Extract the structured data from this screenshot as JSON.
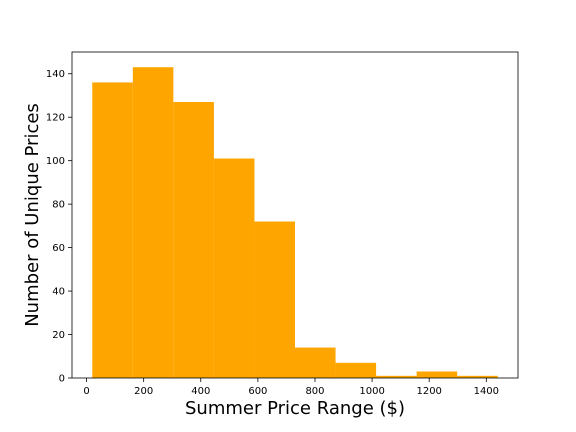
{
  "chart_data": {
    "type": "bar",
    "subtype": "histogram",
    "title": "",
    "xlabel": "Summer Price Range ($)",
    "ylabel": "Number of Unique Prices",
    "bar_color": "#FFA500",
    "bins": [
      {
        "start": 20,
        "end": 162,
        "count": 136
      },
      {
        "start": 162,
        "end": 304,
        "count": 143
      },
      {
        "start": 304,
        "end": 446,
        "count": 127
      },
      {
        "start": 446,
        "end": 588,
        "count": 101
      },
      {
        "start": 588,
        "end": 730,
        "count": 72
      },
      {
        "start": 730,
        "end": 872,
        "count": 14
      },
      {
        "start": 872,
        "end": 1014,
        "count": 7
      },
      {
        "start": 1014,
        "end": 1156,
        "count": 1
      },
      {
        "start": 1156,
        "end": 1298,
        "count": 3
      },
      {
        "start": 1298,
        "end": 1440,
        "count": 1
      }
    ],
    "xlim": [
      -51,
      1511
    ],
    "ylim": [
      0,
      150
    ],
    "xticks": [
      0,
      200,
      400,
      600,
      800,
      1000,
      1200,
      1400
    ],
    "xtick_labels": [
      "0",
      "200",
      "400",
      "600",
      "800",
      "1000",
      "1200",
      "1400"
    ],
    "yticks": [
      0,
      20,
      40,
      60,
      80,
      100,
      120,
      140
    ],
    "ytick_labels": [
      "0",
      "20",
      "40",
      "60",
      "80",
      "100",
      "120",
      "140"
    ],
    "grid": false,
    "legend": "none"
  }
}
